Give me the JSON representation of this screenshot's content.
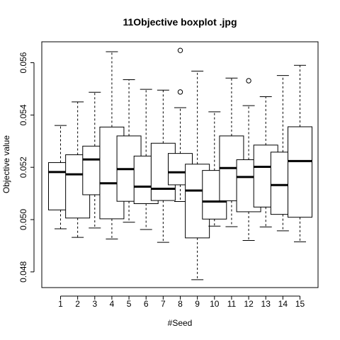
{
  "chart_data": {
    "type": "boxplot",
    "title": "11Objective boxplot .jpg",
    "xlabel": "#Seed",
    "ylabel": "Objective value",
    "ylim": [
      0.0474,
      0.0568
    ],
    "yticks": [
      "0.048",
      "0.050",
      "0.052",
      "0.054",
      "0.056"
    ],
    "ytick_values": [
      0.048,
      0.05,
      0.052,
      0.054,
      0.056
    ],
    "categories": [
      "1",
      "2",
      "3",
      "4",
      "5",
      "6",
      "7",
      "8",
      "9",
      "10",
      "11",
      "12",
      "13",
      "14",
      "15"
    ],
    "boxes": [
      {
        "whisker_low": 0.04965,
        "q1": 0.05037,
        "median": 0.05182,
        "q3": 0.05218,
        "whisker_high": 0.0536,
        "outliers": []
      },
      {
        "whisker_low": 0.04932,
        "q1": 0.05006,
        "median": 0.05173,
        "q3": 0.05248,
        "whisker_high": 0.0545,
        "outliers": []
      },
      {
        "whisker_low": 0.04968,
        "q1": 0.05095,
        "median": 0.0523,
        "q3": 0.05281,
        "whisker_high": 0.05487,
        "outliers": []
      },
      {
        "whisker_low": 0.04926,
        "q1": 0.05003,
        "median": 0.05139,
        "q3": 0.05354,
        "whisker_high": 0.05642,
        "outliers": []
      },
      {
        "whisker_low": 0.0499,
        "q1": 0.0507,
        "median": 0.05193,
        "q3": 0.0532,
        "whisker_high": 0.05535,
        "outliers": []
      },
      {
        "whisker_low": 0.04962,
        "q1": 0.05061,
        "median": 0.05126,
        "q3": 0.05243,
        "whisker_high": 0.05498,
        "outliers": []
      },
      {
        "whisker_low": 0.04913,
        "q1": 0.05073,
        "median": 0.05118,
        "q3": 0.05292,
        "whisker_high": 0.05495,
        "outliers": []
      },
      {
        "whisker_low": 0.05069,
        "q1": 0.05133,
        "median": 0.05181,
        "q3": 0.05253,
        "whisker_high": 0.05428,
        "outliers": [
          0.05488,
          0.05647
        ]
      },
      {
        "whisker_low": 0.0477,
        "q1": 0.0493,
        "median": 0.05111,
        "q3": 0.05212,
        "whisker_high": 0.05568,
        "outliers": []
      },
      {
        "whisker_low": 0.04975,
        "q1": 0.05002,
        "median": 0.05069,
        "q3": 0.05188,
        "whisker_high": 0.05412,
        "outliers": []
      },
      {
        "whisker_low": 0.04973,
        "q1": 0.05072,
        "median": 0.05197,
        "q3": 0.0532,
        "whisker_high": 0.05541,
        "outliers": []
      },
      {
        "whisker_low": 0.0492,
        "q1": 0.0503,
        "median": 0.05163,
        "q3": 0.05229,
        "whisker_high": 0.05436,
        "outliers": [
          0.05531
        ]
      },
      {
        "whisker_low": 0.04972,
        "q1": 0.05048,
        "median": 0.05202,
        "q3": 0.05285,
        "whisker_high": 0.0547,
        "outliers": []
      },
      {
        "whisker_low": 0.04957,
        "q1": 0.0502,
        "median": 0.05132,
        "q3": 0.05258,
        "whisker_high": 0.05551,
        "outliers": []
      },
      {
        "whisker_low": 0.04915,
        "q1": 0.05009,
        "median": 0.05224,
        "q3": 0.05355,
        "whisker_high": 0.0559,
        "outliers": []
      }
    ],
    "grid": false,
    "legend": "none"
  }
}
